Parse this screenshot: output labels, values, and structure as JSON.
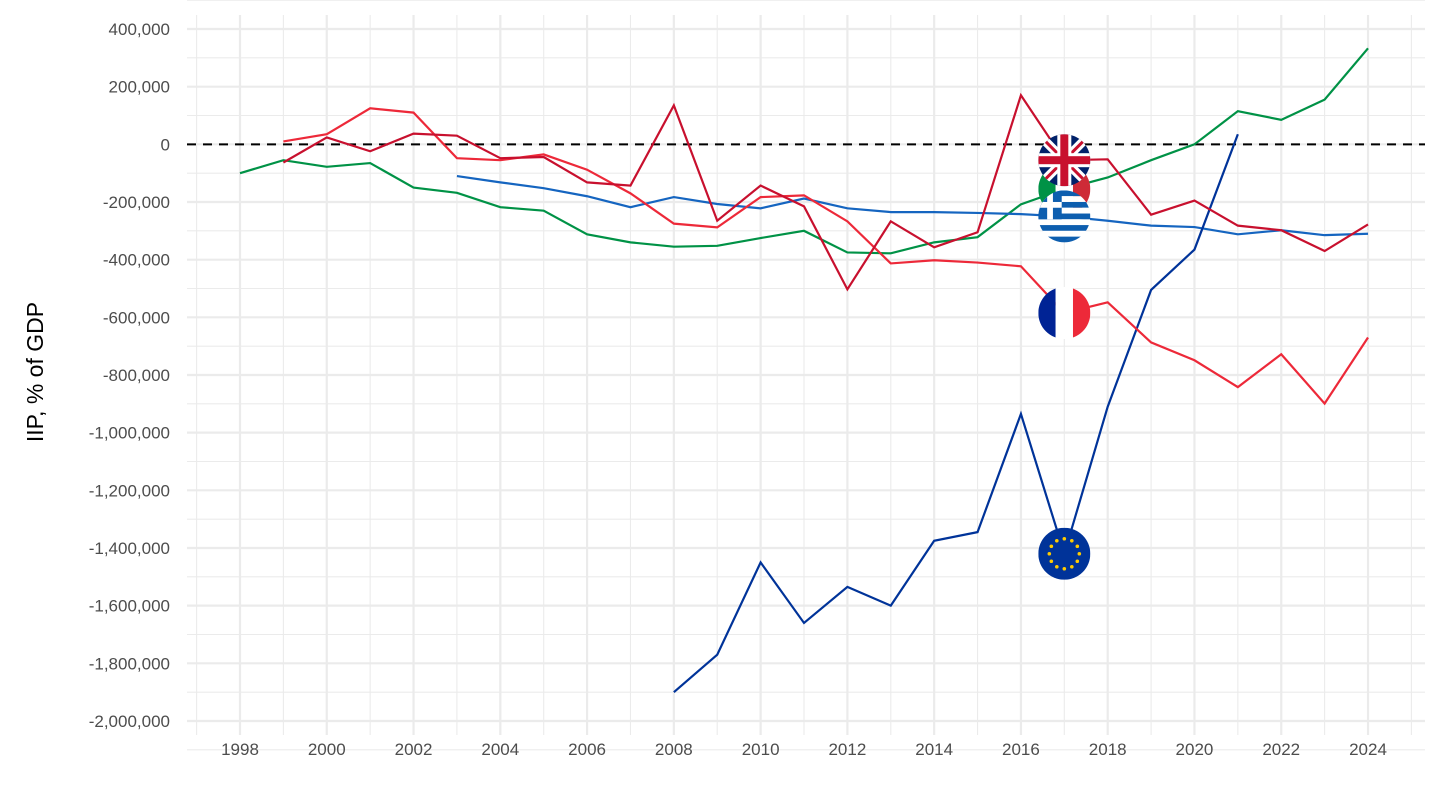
{
  "chart_data": {
    "type": "line",
    "title": "",
    "xlabel": "",
    "ylabel": "IIP, % of GDP",
    "xlim": [
      1997,
      2025
    ],
    "ylim": [
      -2000000,
      400000
    ],
    "grid": true,
    "legend": "flags at 2017 points",
    "x_ticks": [
      "1998",
      "2000",
      "2002",
      "2004",
      "2006",
      "2008",
      "2010",
      "2012",
      "2014",
      "2016",
      "2018",
      "2020",
      "2022",
      "2024"
    ],
    "y_ticks": [
      "400,000",
      "200,000",
      "0",
      "-200,000",
      "-400,000",
      "-600,000",
      "-800,000",
      "-1,000,000",
      "-1,200,000",
      "-1,400,000",
      "-1,600,000",
      "-1,800,000",
      "-2,000,000"
    ],
    "reference_line": 0,
    "series": [
      {
        "name": "Italy",
        "flag": "italy-flag",
        "color": "#009246",
        "x": [
          1998,
          1999,
          2000,
          2001,
          2002,
          2003,
          2004,
          2005,
          2006,
          2007,
          2008,
          2009,
          2010,
          2011,
          2012,
          2013,
          2014,
          2015,
          2016,
          2017,
          2018,
          2019,
          2020,
          2021,
          2022,
          2023,
          2024
        ],
        "values": [
          -100000,
          -55000,
          -78000,
          -65000,
          -150000,
          -168000,
          -218000,
          -230000,
          -312000,
          -340000,
          -355000,
          -352000,
          -325000,
          -300000,
          -375000,
          -378000,
          -340000,
          -322000,
          -208000,
          -155000,
          -115000,
          -55000,
          0,
          115000,
          85000,
          155000,
          333000
        ]
      },
      {
        "name": "Greece",
        "flag": "greece-flag",
        "color": "#1565C0",
        "x": [
          2003,
          2004,
          2005,
          2006,
          2007,
          2008,
          2009,
          2010,
          2011,
          2012,
          2013,
          2014,
          2015,
          2016,
          2017,
          2018,
          2019,
          2020,
          2021,
          2022,
          2023,
          2024
        ],
        "values": [
          -110000,
          -132000,
          -152000,
          -180000,
          -218000,
          -183000,
          -207000,
          -222000,
          -188000,
          -222000,
          -235000,
          -235000,
          -238000,
          -242000,
          -250000,
          -265000,
          -282000,
          -287000,
          -312000,
          -298000,
          -315000,
          -310000
        ]
      },
      {
        "name": "Euro area",
        "flag": "eu-flag",
        "color": "#003399",
        "x": [
          2008,
          2009,
          2010,
          2011,
          2012,
          2013,
          2014,
          2015,
          2016,
          2017,
          2018,
          2019,
          2020,
          2021
        ],
        "values": [
          -1900000,
          -1770000,
          -1450000,
          -1660000,
          -1535000,
          -1600000,
          -1375000,
          -1345000,
          -935000,
          -1420000,
          -910000,
          -505000,
          -365000,
          35000
        ]
      },
      {
        "name": "France",
        "flag": "france-flag",
        "color": "#ED2939",
        "x": [
          1999,
          2000,
          2001,
          2002,
          2003,
          2004,
          2005,
          2006,
          2007,
          2008,
          2009,
          2010,
          2011,
          2012,
          2013,
          2014,
          2015,
          2016,
          2017,
          2018,
          2019,
          2020,
          2021,
          2022,
          2023,
          2024
        ],
        "values": [
          10000,
          35000,
          125000,
          110000,
          -48000,
          -55000,
          -35000,
          -88000,
          -170000,
          -275000,
          -288000,
          -183000,
          -177000,
          -267000,
          -413000,
          -402000,
          -410000,
          -423000,
          -585000,
          -548000,
          -687000,
          -749000,
          -842000,
          -728000,
          -899000,
          -670000
        ]
      },
      {
        "name": "United Kingdom",
        "flag": "uk-flag",
        "color": "#C8102E",
        "x": [
          1999,
          2000,
          2001,
          2002,
          2003,
          2004,
          2005,
          2006,
          2007,
          2008,
          2009,
          2010,
          2011,
          2012,
          2013,
          2014,
          2015,
          2016,
          2017,
          2018,
          2019,
          2020,
          2021,
          2022,
          2023,
          2024
        ],
        "values": [
          -63000,
          24000,
          -24000,
          37000,
          30000,
          -48000,
          -44000,
          -132000,
          -143000,
          135000,
          -265000,
          -143000,
          -215000,
          -503000,
          -267000,
          -357000,
          -305000,
          170000,
          -55000,
          -52000,
          -244000,
          -195000,
          -282000,
          -298000,
          -370000,
          -278000
        ]
      }
    ]
  }
}
